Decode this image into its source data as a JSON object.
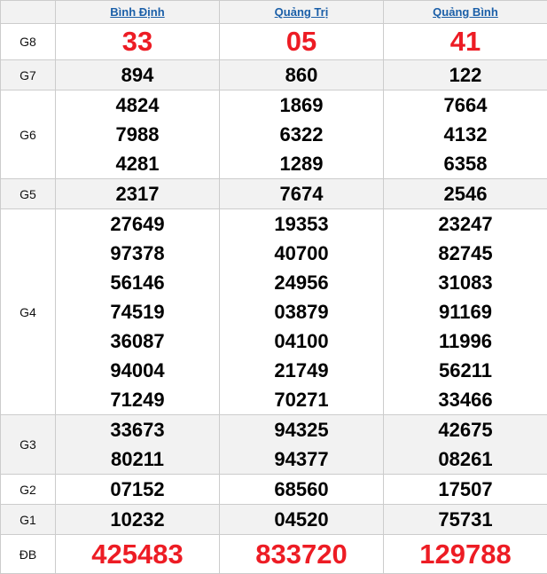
{
  "provinces": [
    "Bình Định",
    "Quảng Trị",
    "Quảng Bình"
  ],
  "colors": {
    "accent_red": "#ed1c24",
    "link_blue": "#1b5fa8",
    "shade": "#f2f2f2"
  },
  "prizes": [
    {
      "label": "G8",
      "red": true,
      "values": [
        [
          "33"
        ],
        [
          "05"
        ],
        [
          "41"
        ]
      ]
    },
    {
      "label": "G7",
      "values": [
        [
          "894"
        ],
        [
          "860"
        ],
        [
          "122"
        ]
      ]
    },
    {
      "label": "G6",
      "values": [
        [
          "4824",
          "7988",
          "4281"
        ],
        [
          "1869",
          "6322",
          "1289"
        ],
        [
          "7664",
          "4132",
          "6358"
        ]
      ]
    },
    {
      "label": "G5",
      "values": [
        [
          "2317"
        ],
        [
          "7674"
        ],
        [
          "2546"
        ]
      ]
    },
    {
      "label": "G4",
      "values": [
        [
          "27649",
          "97378",
          "56146",
          "74519",
          "36087",
          "94004",
          "71249"
        ],
        [
          "19353",
          "40700",
          "24956",
          "03879",
          "04100",
          "21749",
          "70271"
        ],
        [
          "23247",
          "82745",
          "31083",
          "91169",
          "11996",
          "56211",
          "33466"
        ]
      ]
    },
    {
      "label": "G3",
      "values": [
        [
          "33673",
          "80211"
        ],
        [
          "94325",
          "94377"
        ],
        [
          "42675",
          "08261"
        ]
      ]
    },
    {
      "label": "G2",
      "values": [
        [
          "07152"
        ],
        [
          "68560"
        ],
        [
          "17507"
        ]
      ]
    },
    {
      "label": "G1",
      "values": [
        [
          "10232"
        ],
        [
          "04520"
        ],
        [
          "75731"
        ]
      ]
    },
    {
      "label": "ĐB",
      "red": true,
      "values": [
        [
          "425483"
        ],
        [
          "833720"
        ],
        [
          "129788"
        ]
      ]
    }
  ]
}
